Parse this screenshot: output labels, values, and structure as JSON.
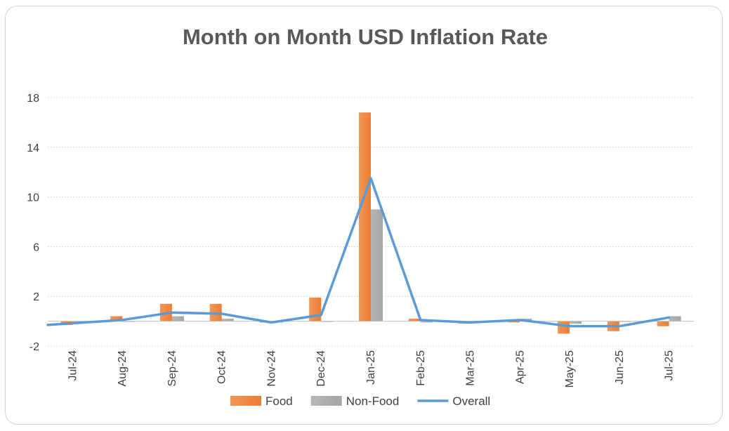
{
  "chart_data": {
    "type": "bar",
    "title": "Month on Month USD Inflation Rate",
    "xlabel": "",
    "ylabel": "",
    "categories": [
      "Jul-24",
      "Aug-24",
      "Sep-24",
      "Oct-24",
      "Nov-24",
      "Dec-24",
      "Jan-25",
      "Feb-25",
      "Mar-25",
      "Apr-25",
      "May-25",
      "Jun-25",
      "Jul-25"
    ],
    "ylim": [
      -2,
      18
    ],
    "yticks": [
      -2,
      2,
      6,
      10,
      14,
      18
    ],
    "grid": true,
    "legend": "bottom",
    "series": [
      {
        "name": "Food",
        "kind": "bar",
        "color": "#ed7d31",
        "values": [
          -0.3,
          0.4,
          1.4,
          1.4,
          -0.1,
          1.9,
          16.8,
          0.2,
          -0.2,
          -0.1,
          -1.0,
          -0.8,
          -0.4
        ]
      },
      {
        "name": "Non-Food",
        "kind": "bar",
        "color": "#a5a5a5",
        "values": [
          -0.1,
          0.0,
          0.4,
          0.2,
          -0.1,
          0.0,
          9.0,
          -0.1,
          -0.1,
          0.2,
          -0.2,
          0.0,
          0.4
        ]
      },
      {
        "name": "Overall",
        "kind": "line",
        "color": "#5b9bd5",
        "values": [
          -0.3,
          0.1,
          0.7,
          0.6,
          -0.1,
          0.5,
          11.5,
          0.1,
          -0.1,
          0.1,
          -0.4,
          -0.4,
          0.3
        ]
      }
    ]
  }
}
